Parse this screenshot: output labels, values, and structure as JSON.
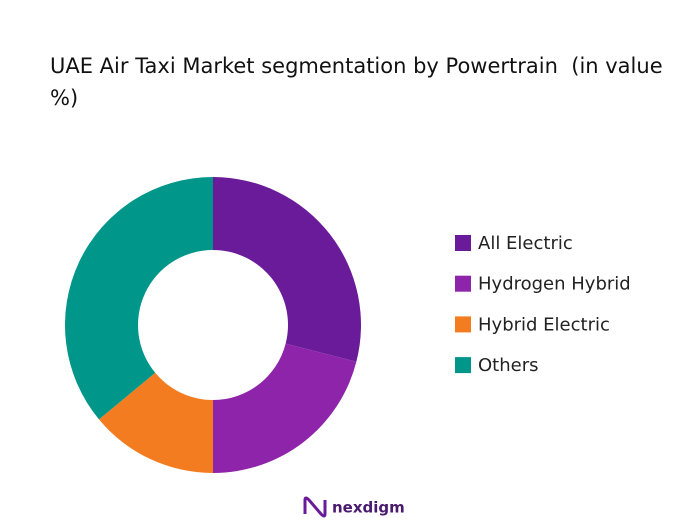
{
  "chart_data": {
    "type": "donut",
    "title": "UAE Air Taxi Market segmentation by Powertrain  (in value %)",
    "categories": [
      "All Electric",
      "Hydrogen Hybrid",
      "Hybrid Electric",
      "Others"
    ],
    "values": [
      29,
      21,
      14,
      36
    ],
    "colors": [
      "#6a1b9a",
      "#8e24aa",
      "#f47c20",
      "#00968a"
    ],
    "legend": "right"
  },
  "brand": "nexdigm"
}
